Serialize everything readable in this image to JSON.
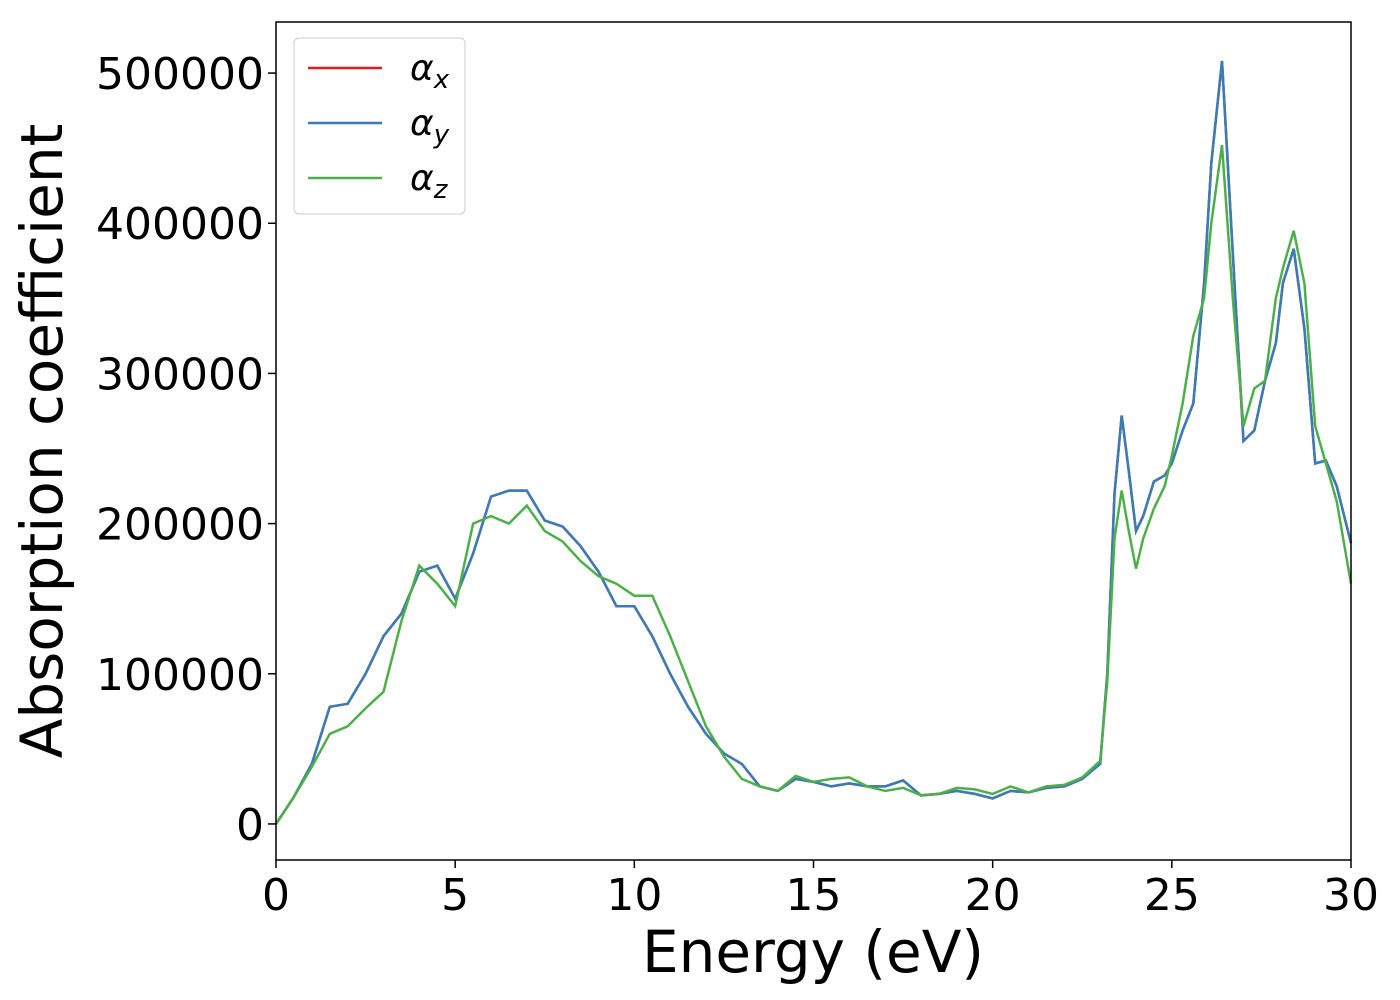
{
  "chart_data": {
    "type": "line",
    "x_label": "Energy (eV)",
    "y_label": "Absorption coefficient",
    "x": [
      0,
      0.5,
      1,
      1.5,
      2,
      2.5,
      3,
      3.5,
      4,
      4.5,
      5,
      5.5,
      6,
      6.5,
      7,
      7.5,
      8,
      8.5,
      9,
      9.5,
      10,
      10.5,
      11,
      11.5,
      12,
      12.5,
      13,
      13.5,
      14,
      14.5,
      15,
      15.5,
      16,
      16.5,
      17,
      17.5,
      18,
      18.5,
      19,
      19.5,
      20,
      20.5,
      21,
      21.5,
      22,
      22.5,
      23,
      23.2,
      23.4,
      23.6,
      23.8,
      24.0,
      24.2,
      24.5,
      24.8,
      25.0,
      25.3,
      25.6,
      25.9,
      26.1,
      26.4,
      26.7,
      27.0,
      27.3,
      27.6,
      27.9,
      28.1,
      28.4,
      28.7,
      29.0,
      29.3,
      29.6,
      30.0
    ],
    "series": [
      {
        "name": "αx",
        "color": "#e41a1c",
        "values": [
          0,
          18000,
          40000,
          78000,
          80000,
          100000,
          125000,
          140000,
          168000,
          172000,
          150000,
          180000,
          218000,
          222000,
          222000,
          202000,
          198000,
          185000,
          168000,
          145000,
          145000,
          125000,
          100000,
          78000,
          60000,
          47000,
          40000,
          25000,
          22000,
          30000,
          28000,
          25000,
          27000,
          25000,
          25000,
          29000,
          19000,
          20000,
          22000,
          20000,
          17000,
          22000,
          21000,
          24000,
          25000,
          30000,
          40000,
          100000,
          220000,
          272000,
          235000,
          195000,
          205000,
          228000,
          232000,
          240000,
          262000,
          280000,
          360000,
          440000,
          508000,
          380000,
          255000,
          262000,
          295000,
          320000,
          360000,
          383000,
          330000,
          240000,
          242000,
          225000,
          187000
        ]
      },
      {
        "name": "αy",
        "color": "#377eb8",
        "values": [
          0,
          18000,
          40000,
          78000,
          80000,
          100000,
          125000,
          140000,
          168000,
          172000,
          150000,
          180000,
          218000,
          222000,
          222000,
          202000,
          198000,
          185000,
          168000,
          145000,
          145000,
          125000,
          100000,
          78000,
          60000,
          47000,
          40000,
          25000,
          22000,
          30000,
          28000,
          25000,
          27000,
          25000,
          25000,
          29000,
          19000,
          20000,
          22000,
          20000,
          17000,
          22000,
          21000,
          24000,
          25000,
          30000,
          40000,
          100000,
          220000,
          272000,
          235000,
          195000,
          205000,
          228000,
          232000,
          240000,
          262000,
          280000,
          360000,
          440000,
          508000,
          380000,
          255000,
          262000,
          295000,
          320000,
          360000,
          383000,
          330000,
          240000,
          242000,
          225000,
          187000
        ]
      },
      {
        "name": "αz",
        "color": "#4daf4a",
        "values": [
          0,
          18000,
          38000,
          60000,
          65000,
          77000,
          88000,
          135000,
          172000,
          160000,
          145000,
          200000,
          205000,
          200000,
          212000,
          195000,
          188000,
          175000,
          165000,
          160000,
          152000,
          152000,
          125000,
          95000,
          65000,
          45000,
          30000,
          25000,
          22000,
          32000,
          28000,
          30000,
          31000,
          25000,
          22000,
          24000,
          19000,
          20000,
          24000,
          23000,
          20000,
          25000,
          21000,
          25000,
          26000,
          31000,
          42000,
          95000,
          190000,
          222000,
          195000,
          170000,
          190000,
          210000,
          225000,
          245000,
          280000,
          325000,
          350000,
          400000,
          452000,
          350000,
          265000,
          290000,
          295000,
          350000,
          370000,
          395000,
          360000,
          265000,
          240000,
          215000,
          160000
        ]
      }
    ],
    "xlim": [
      0,
      30
    ],
    "xticks": [
      0,
      5,
      10,
      15,
      20,
      25,
      30
    ],
    "ylim": [
      -24000,
      534000
    ],
    "yticks": [
      0,
      100000,
      200000,
      300000,
      400000,
      500000
    ],
    "legend": "upper left"
  }
}
